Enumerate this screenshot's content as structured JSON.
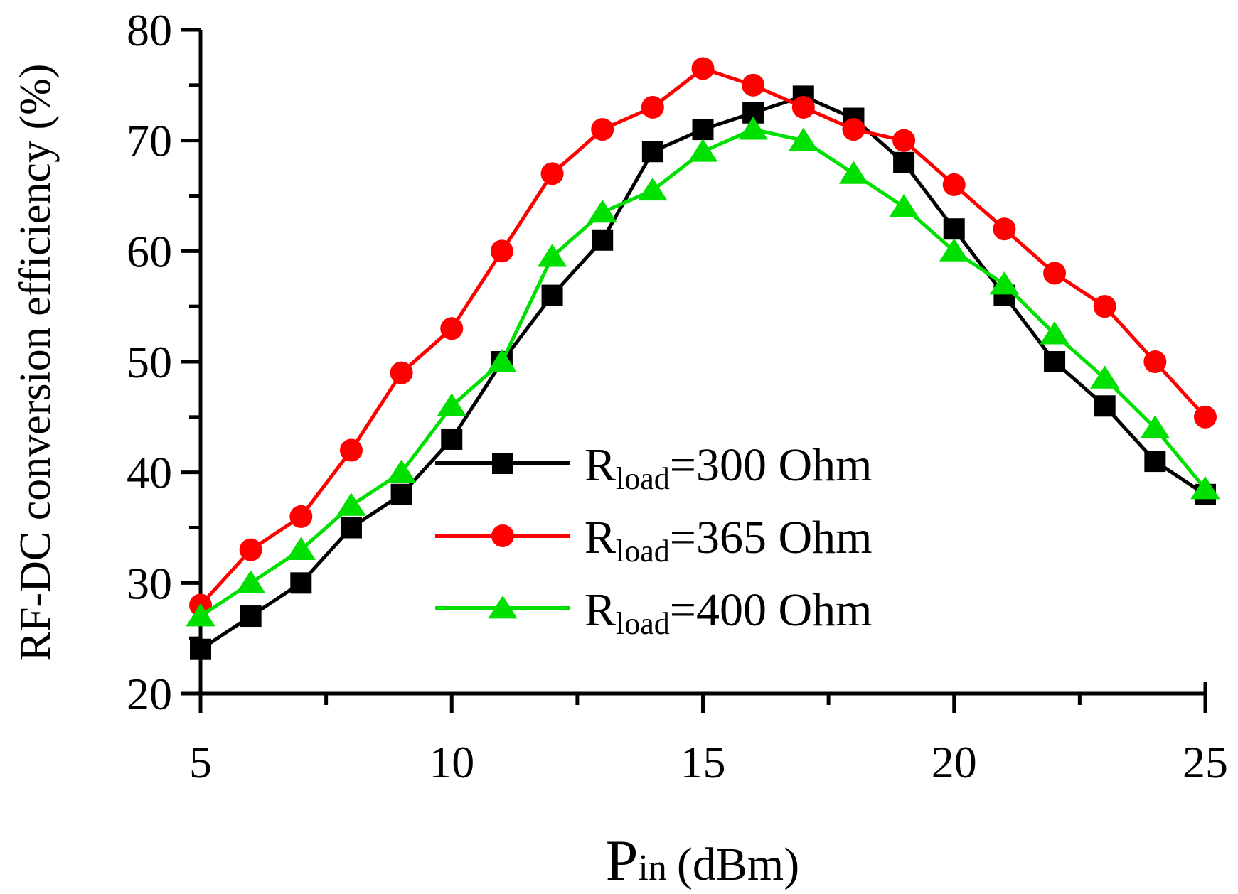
{
  "chart_data": {
    "type": "line",
    "title": "",
    "xlabel_main": "P",
    "xlabel_sub": "in",
    "xlabel_unit": "(dBm)",
    "ylabel": "RF-DC conversion efficiency (%)",
    "xlim": [
      5,
      25
    ],
    "ylim": [
      20,
      80
    ],
    "x_ticks": [
      5,
      10,
      15,
      20,
      25
    ],
    "y_ticks": [
      20,
      30,
      40,
      50,
      60,
      70,
      80
    ],
    "grid": false,
    "legend_position": "center-right",
    "x": [
      5,
      6,
      7,
      8,
      9,
      10,
      11,
      12,
      13,
      14,
      15,
      16,
      17,
      18,
      19,
      20,
      21,
      22,
      23,
      24,
      25
    ],
    "series": [
      {
        "name": "Rload=300 Ohm",
        "label_main": "R",
        "label_sub": "load",
        "label_rest": "=300 Ohm",
        "color": "#000000",
        "marker": "square",
        "values": [
          24,
          27,
          30,
          35,
          38,
          43,
          50,
          56,
          61,
          69,
          71,
          72.5,
          74,
          72,
          68,
          62,
          56,
          50,
          46,
          41,
          38
        ]
      },
      {
        "name": "Rload=365 Ohm",
        "label_main": "R",
        "label_sub": "load",
        "label_rest": "=365 Ohm",
        "color": "#ff0000",
        "marker": "circle",
        "values": [
          28,
          33,
          36,
          42,
          49,
          53,
          60,
          67,
          71,
          73,
          76.5,
          75,
          73,
          71,
          70,
          66,
          62,
          58,
          55,
          50,
          45
        ]
      },
      {
        "name": "Rload=400 Ohm",
        "label_main": "R",
        "label_sub": "load",
        "label_rest": "=400 Ohm",
        "color": "#00e000",
        "marker": "triangle",
        "values": [
          27,
          30,
          33,
          37,
          40,
          46,
          50,
          59.5,
          63.5,
          65.5,
          69,
          71,
          70,
          67,
          64,
          60,
          57,
          52.5,
          48.5,
          44,
          38.5
        ]
      }
    ]
  }
}
